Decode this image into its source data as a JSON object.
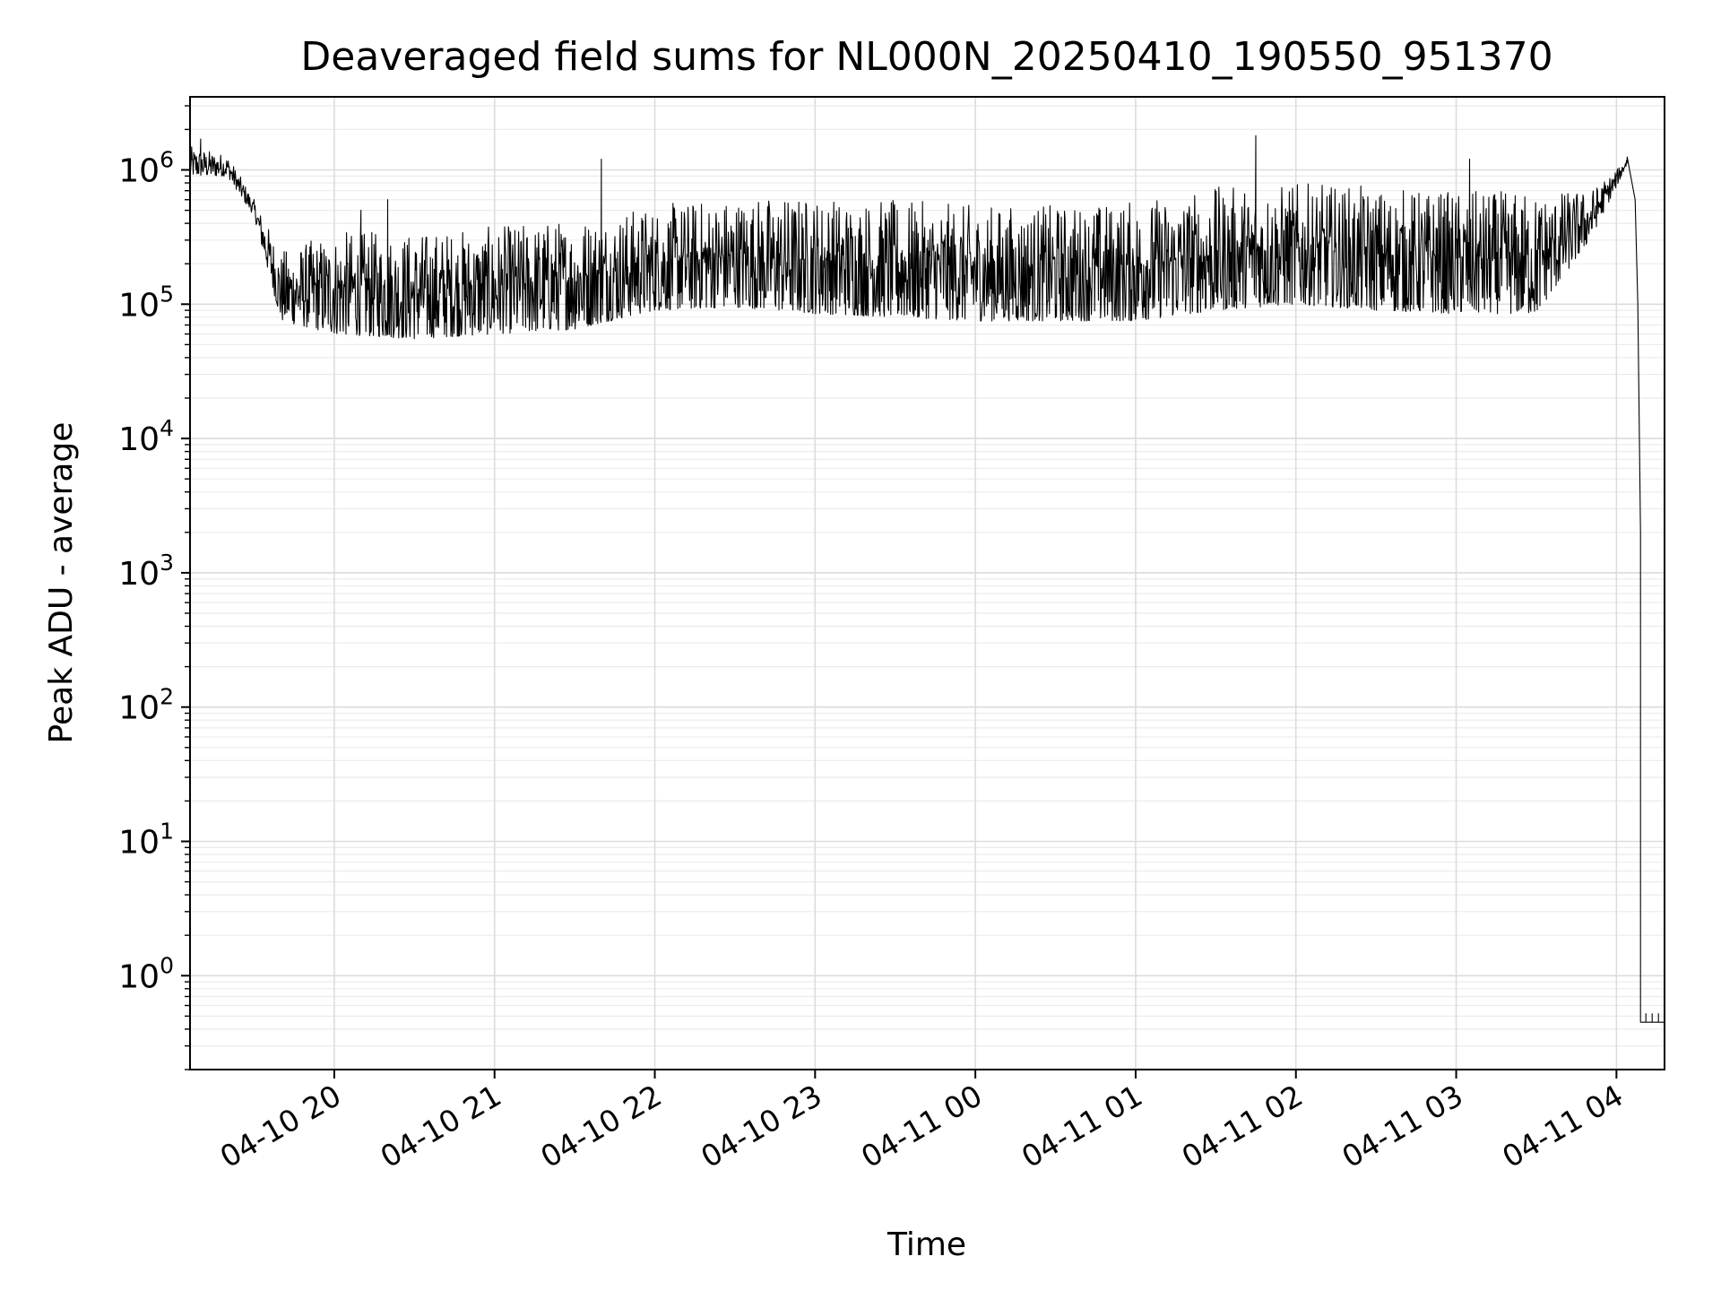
{
  "chart_data": {
    "type": "line",
    "title": "Deaveraged field sums for NL000N_20250410_190550_951370",
    "xlabel": "Time",
    "ylabel": "Peak ADU - average",
    "y_scale": "log",
    "grid": "on (major and minor)",
    "x_range": [
      "2025-04-10 19:06",
      "2025-04-11 04:18"
    ],
    "y_range": [
      0.2,
      3500000
    ],
    "x_ticks": [
      {
        "label": "04-10 20",
        "time": "2025-04-10 20:00"
      },
      {
        "label": "04-10 21",
        "time": "2025-04-10 21:00"
      },
      {
        "label": "04-10 22",
        "time": "2025-04-10 22:00"
      },
      {
        "label": "04-10 23",
        "time": "2025-04-10 23:00"
      },
      {
        "label": "04-11 00",
        "time": "2025-04-11 00:00"
      },
      {
        "label": "04-11 01",
        "time": "2025-04-11 01:00"
      },
      {
        "label": "04-11 02",
        "time": "2025-04-11 02:00"
      },
      {
        "label": "04-11 03",
        "time": "2025-04-11 03:00"
      },
      {
        "label": "04-11 04",
        "time": "2025-04-11 04:00"
      }
    ],
    "y_ticks": [
      {
        "base": "10",
        "exp": "0",
        "value": 1
      },
      {
        "base": "10",
        "exp": "1",
        "value": 10
      },
      {
        "base": "10",
        "exp": "2",
        "value": 100
      },
      {
        "base": "10",
        "exp": "3",
        "value": 1000
      },
      {
        "base": "10",
        "exp": "4",
        "value": 10000
      },
      {
        "base": "10",
        "exp": "5",
        "value": 100000
      },
      {
        "base": "10",
        "exp": "6",
        "value": 1000000
      }
    ],
    "series": [
      {
        "color": "#000000",
        "style": "thin line with dense high-frequency spikes",
        "envelope": [
          {
            "time": "2025-04-10 19:06",
            "low": 900000,
            "high": 1500000
          },
          {
            "time": "2025-04-10 19:20",
            "low": 900000,
            "high": 1300000
          },
          {
            "time": "2025-04-10 19:30",
            "low": 450000,
            "high": 600000
          },
          {
            "time": "2025-04-10 19:40",
            "low": 75000,
            "high": 250000
          },
          {
            "time": "2025-04-10 20:00",
            "low": 60000,
            "high": 350000
          },
          {
            "time": "2025-04-10 20:30",
            "low": 55000,
            "high": 350000
          },
          {
            "time": "2025-04-10 21:00",
            "low": 60000,
            "high": 380000
          },
          {
            "time": "2025-04-10 21:30",
            "low": 65000,
            "high": 450000
          },
          {
            "time": "2025-04-10 22:00",
            "low": 90000,
            "high": 550000
          },
          {
            "time": "2025-04-10 22:30",
            "low": 95000,
            "high": 650000
          },
          {
            "time": "2025-04-10 23:00",
            "low": 85000,
            "high": 650000
          },
          {
            "time": "2025-04-10 23:30",
            "low": 80000,
            "high": 600000
          },
          {
            "time": "2025-04-11 00:00",
            "low": 75000,
            "high": 550000
          },
          {
            "time": "2025-04-11 00:30",
            "low": 75000,
            "high": 550000
          },
          {
            "time": "2025-04-11 01:00",
            "low": 75000,
            "high": 600000
          },
          {
            "time": "2025-04-11 01:30",
            "low": 90000,
            "high": 750000
          },
          {
            "time": "2025-04-11 02:00",
            "low": 100000,
            "high": 800000
          },
          {
            "time": "2025-04-11 02:30",
            "low": 90000,
            "high": 750000
          },
          {
            "time": "2025-04-11 03:00",
            "low": 85000,
            "high": 700000
          },
          {
            "time": "2025-04-11 03:30",
            "low": 85000,
            "high": 700000
          },
          {
            "time": "2025-04-11 03:50",
            "low": 300000,
            "high": 700000
          },
          {
            "time": "2025-04-11 04:00",
            "low": 750000,
            "high": 1000000
          },
          {
            "time": "2025-04-11 04:04",
            "low": 1100000,
            "high": 1250000
          }
        ],
        "spikes": [
          {
            "time": "2025-04-10 19:10",
            "value": 1700000
          },
          {
            "time": "2025-04-10 20:10",
            "value": 500000
          },
          {
            "time": "2025-04-10 20:20",
            "value": 600000
          },
          {
            "time": "2025-04-10 21:40",
            "value": 1200000
          },
          {
            "time": "2025-04-11 01:45",
            "value": 1800000
          },
          {
            "time": "2025-04-11 03:05",
            "value": 1200000
          }
        ],
        "drop": [
          {
            "time": "2025-04-11 04:04",
            "value": 1250000
          },
          {
            "time": "2025-04-11 04:07",
            "value": 600000
          },
          {
            "time": "2025-04-11 04:08",
            "value": 100000
          },
          {
            "time": "2025-04-11 04:09",
            "value": 2000
          },
          {
            "time": "2025-04-11 04:09",
            "value": 180
          },
          {
            "time": "2025-04-11 04:09",
            "value": 8
          },
          {
            "time": "2025-04-11 04:09",
            "value": 0.45
          },
          {
            "time": "2025-04-11 04:18",
            "value": 0.45
          }
        ]
      }
    ]
  }
}
